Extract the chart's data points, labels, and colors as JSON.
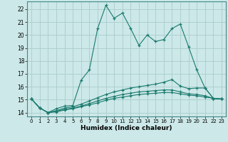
{
  "xlabel": "Humidex (Indice chaleur)",
  "xlim": [
    -0.5,
    23.5
  ],
  "ylim": [
    13.7,
    22.6
  ],
  "xticks": [
    0,
    1,
    2,
    3,
    4,
    5,
    6,
    7,
    8,
    9,
    10,
    11,
    12,
    13,
    14,
    15,
    16,
    17,
    18,
    19,
    20,
    21,
    22,
    23
  ],
  "yticks": [
    14,
    15,
    16,
    17,
    18,
    19,
    20,
    21,
    22
  ],
  "background_color": "#cce8e8",
  "grid_color": "#aacccc",
  "line_color": "#1a7a6e",
  "lines": [
    {
      "x": [
        0,
        1,
        2,
        3,
        4,
        5,
        6,
        7,
        8,
        9,
        10,
        11,
        12,
        13,
        14,
        15,
        16,
        17,
        18,
        19,
        20,
        21,
        22,
        23
      ],
      "y": [
        15.05,
        14.35,
        14.0,
        14.3,
        14.5,
        14.55,
        16.5,
        17.3,
        20.5,
        22.3,
        21.3,
        21.7,
        20.5,
        19.2,
        20.0,
        19.5,
        19.65,
        20.5,
        20.85,
        19.1,
        17.3,
        15.9,
        15.1,
        15.05
      ]
    },
    {
      "x": [
        0,
        1,
        2,
        3,
        4,
        5,
        6,
        7,
        8,
        9,
        10,
        11,
        12,
        13,
        14,
        15,
        16,
        17,
        18,
        19,
        20,
        21,
        22,
        23
      ],
      "y": [
        15.05,
        14.35,
        14.0,
        14.15,
        14.35,
        14.45,
        14.65,
        14.9,
        15.15,
        15.4,
        15.6,
        15.75,
        15.9,
        16.0,
        16.1,
        16.2,
        16.35,
        16.55,
        16.05,
        15.85,
        15.9,
        15.9,
        15.1,
        15.05
      ]
    },
    {
      "x": [
        0,
        1,
        2,
        3,
        4,
        5,
        6,
        7,
        8,
        9,
        10,
        11,
        12,
        13,
        14,
        15,
        16,
        17,
        18,
        19,
        20,
        21,
        22,
        23
      ],
      "y": [
        15.05,
        14.35,
        14.0,
        14.1,
        14.25,
        14.35,
        14.5,
        14.7,
        14.9,
        15.1,
        15.25,
        15.4,
        15.5,
        15.6,
        15.65,
        15.7,
        15.75,
        15.75,
        15.6,
        15.45,
        15.4,
        15.3,
        15.1,
        15.05
      ]
    },
    {
      "x": [
        0,
        1,
        2,
        3,
        4,
        5,
        6,
        7,
        8,
        9,
        10,
        11,
        12,
        13,
        14,
        15,
        16,
        17,
        18,
        19,
        20,
        21,
        22,
        23
      ],
      "y": [
        15.05,
        14.35,
        14.0,
        14.05,
        14.2,
        14.3,
        14.45,
        14.6,
        14.75,
        14.95,
        15.1,
        15.2,
        15.3,
        15.4,
        15.45,
        15.5,
        15.55,
        15.55,
        15.45,
        15.35,
        15.3,
        15.2,
        15.1,
        15.05
      ]
    }
  ]
}
